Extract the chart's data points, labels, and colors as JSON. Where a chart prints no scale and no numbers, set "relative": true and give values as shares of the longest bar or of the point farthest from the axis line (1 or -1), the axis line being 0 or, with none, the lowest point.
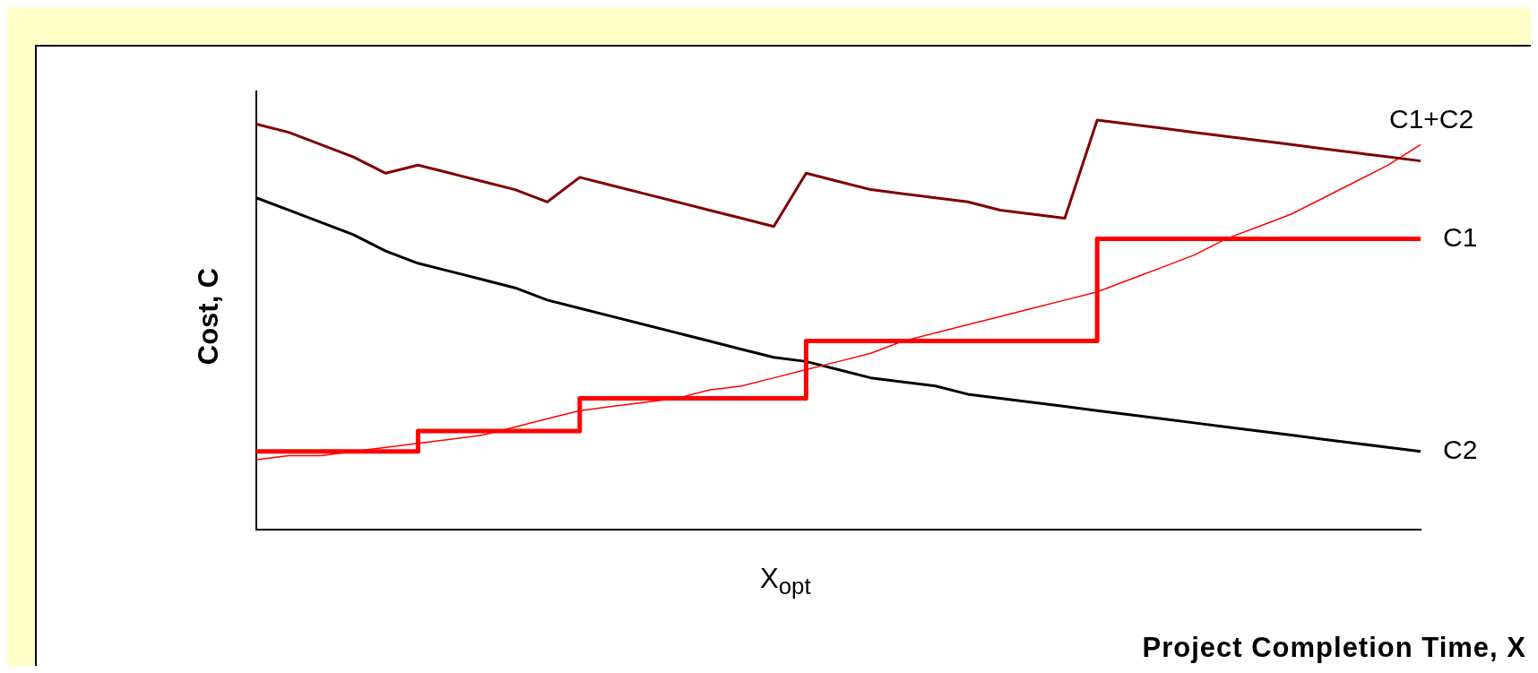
{
  "chart_data": {
    "type": "line",
    "xlabel": "Project Completion Time, X",
    "ylabel": "Cost, C",
    "relative": true,
    "legend": false,
    "grid": false,
    "marker": "none",
    "annotations": [
      "X$_{opt}$"
    ],
    "categories": [
      null,
      null,
      null,
      null,
      null,
      null,
      null,
      null,
      null,
      null,
      null,
      null,
      null,
      null,
      null,
      null,
      null,
      null,
      null,
      null,
      null,
      null,
      null,
      null,
      null,
      null,
      null,
      null,
      null,
      null,
      null,
      null,
      null,
      null,
      null,
      null,
      null
    ],
    "series": [
      {
        "name": "C1+C2",
        "color": "#800000",
        "values": [
          0.99,
          0.97,
          0.94,
          0.91,
          0.87,
          0.89,
          0.87,
          0.85,
          0.83,
          0.8,
          0.86,
          0.84,
          0.82,
          0.8,
          0.78,
          0.76,
          0.74,
          0.87,
          0.85,
          0.83,
          0.82,
          0.81,
          0.8,
          0.78,
          0.77,
          0.76,
          1.0,
          0.99,
          0.98,
          0.97,
          0.96,
          0.95,
          0.94,
          0.93,
          0.92,
          0.91,
          0.9
        ]
      },
      {
        "name": "C1",
        "type": "step",
        "color": "#ff0000",
        "values": [
          0.19,
          0.19,
          0.19,
          0.19,
          0.19,
          0.24,
          0.24,
          0.24,
          0.24,
          0.24,
          0.32,
          0.32,
          0.32,
          0.32,
          0.32,
          0.32,
          0.32,
          0.46,
          0.46,
          0.46,
          0.46,
          0.46,
          0.46,
          0.46,
          0.46,
          0.46,
          0.71,
          0.71,
          0.71,
          0.71,
          0.71,
          0.71,
          0.71,
          0.71,
          0.71,
          0.71,
          0.71
        ]
      },
      {
        "color": "#ff0000",
        "values": [
          0.17,
          0.18,
          0.18,
          0.19,
          0.2,
          0.21,
          0.22,
          0.23,
          0.25,
          0.27,
          0.29,
          0.3,
          0.31,
          0.32,
          0.34,
          0.35,
          0.37,
          0.39,
          0.41,
          0.43,
          0.46,
          0.48,
          0.5,
          0.52,
          0.54,
          0.56,
          0.58,
          0.61,
          0.64,
          0.67,
          0.71,
          0.74,
          0.77,
          0.81,
          0.85,
          0.89,
          0.94
        ]
      },
      {
        "name": "C2",
        "color": "#000000",
        "values": [
          0.81,
          0.78,
          0.75,
          0.72,
          0.68,
          0.65,
          0.63,
          0.61,
          0.59,
          0.56,
          0.54,
          0.52,
          0.5,
          0.48,
          0.46,
          0.44,
          0.42,
          0.41,
          0.39,
          0.37,
          0.36,
          0.35,
          0.33,
          0.32,
          0.31,
          0.3,
          0.29,
          0.28,
          0.27,
          0.26,
          0.25,
          0.24,
          0.23,
          0.22,
          0.21,
          0.2,
          0.19
        ]
      }
    ]
  }
}
